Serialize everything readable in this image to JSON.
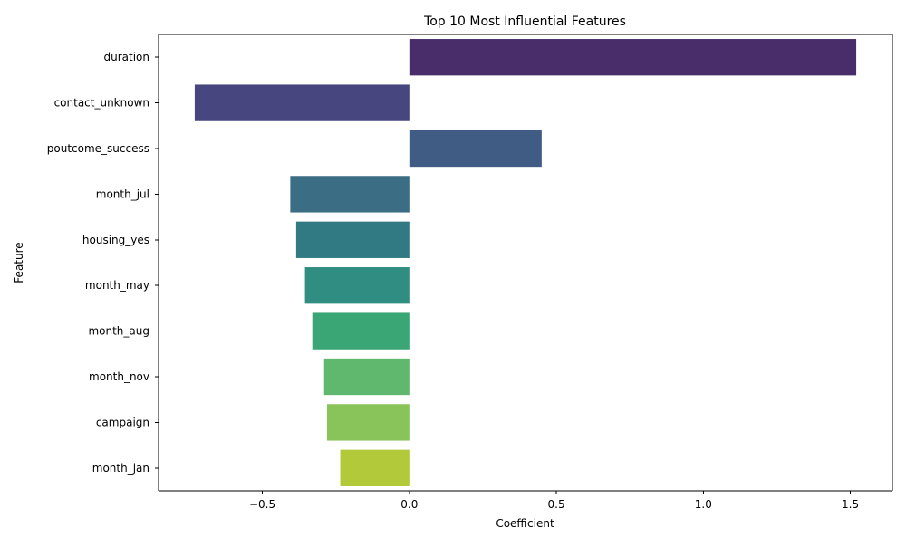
{
  "chart_data": {
    "type": "bar",
    "orientation": "horizontal",
    "title": "Top 10 Most Influential Features",
    "xlabel": "Coefficient",
    "ylabel": "Feature",
    "categories": [
      "duration",
      "contact_unknown",
      "poutcome_success",
      "month_jul",
      "housing_yes",
      "month_may",
      "month_aug",
      "month_nov",
      "campaign",
      "month_jan"
    ],
    "values": [
      1.52,
      -0.73,
      0.45,
      -0.405,
      -0.385,
      -0.355,
      -0.33,
      -0.29,
      -0.28,
      -0.235
    ],
    "colors": [
      "#482d6a",
      "#47467e",
      "#415c84",
      "#3b6d84",
      "#317983",
      "#2f8d82",
      "#3aa575",
      "#60b76e",
      "#89c45b",
      "#b2c939"
    ],
    "xlim": [
      -0.853,
      1.643
    ],
    "xticks": [
      -0.5,
      0.0,
      0.5,
      1.0,
      1.5
    ],
    "xtick_labels": [
      "−0.5",
      "0.0",
      "0.5",
      "1.0",
      "1.5"
    ],
    "grid": false
  }
}
